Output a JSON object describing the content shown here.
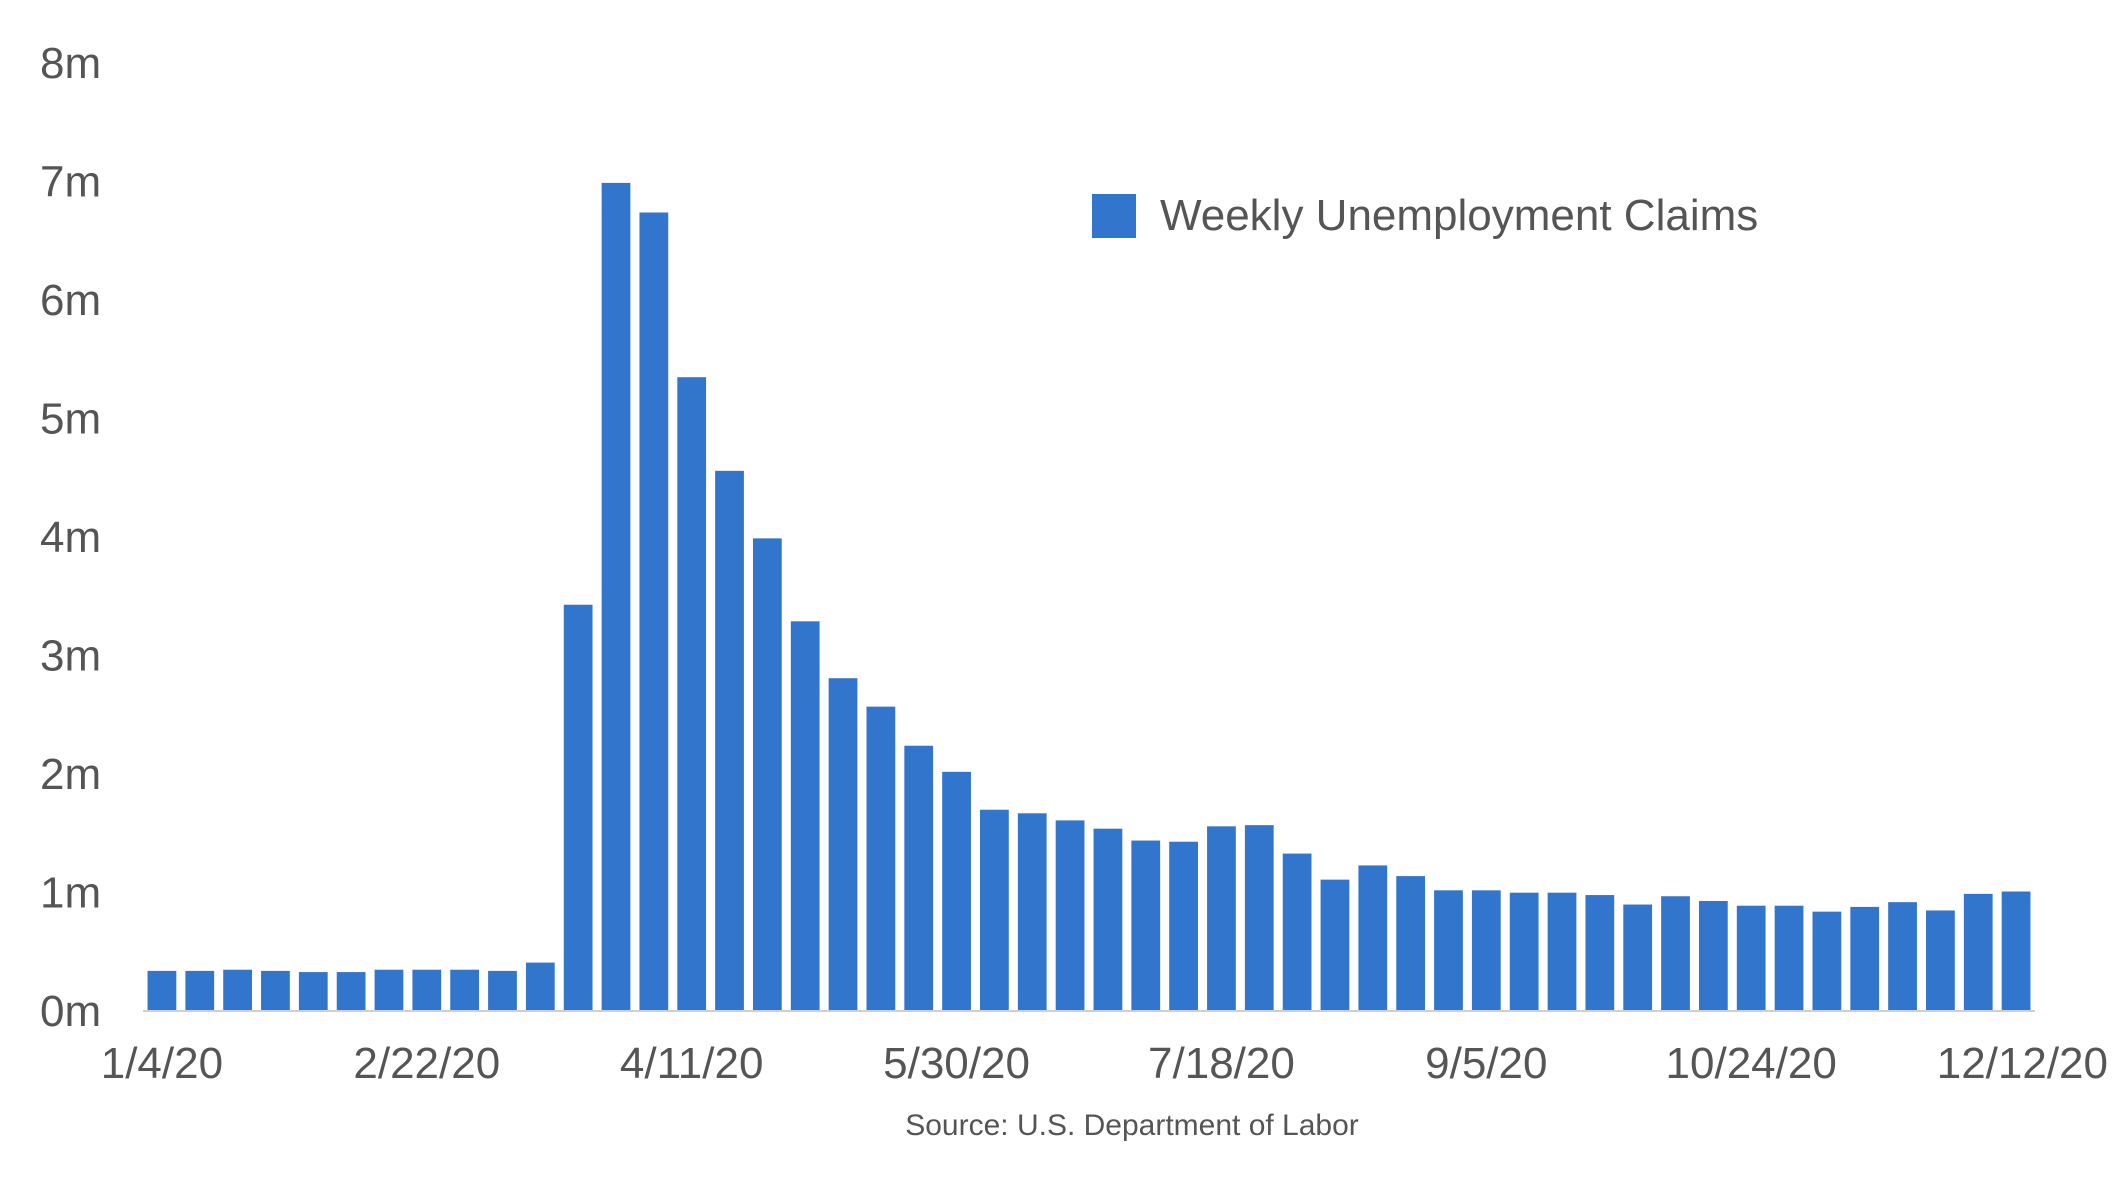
{
  "chart_data": {
    "type": "bar",
    "legend": {
      "label": "Weekly Unemployment Claims",
      "placement": "top-right"
    },
    "source": "Source: U.S. Department of Labor",
    "color": "#3176CC",
    "ylim": [
      0,
      8000000
    ],
    "yticks": [
      {
        "value": 0,
        "label": "0m"
      },
      {
        "value": 1000000,
        "label": "1m"
      },
      {
        "value": 2000000,
        "label": "2m"
      },
      {
        "value": 3000000,
        "label": "3m"
      },
      {
        "value": 4000000,
        "label": "4m"
      },
      {
        "value": 5000000,
        "label": "5m"
      },
      {
        "value": 6000000,
        "label": "6m"
      },
      {
        "value": 7000000,
        "label": "7m"
      },
      {
        "value": 8000000,
        "label": "8m"
      }
    ],
    "xticks": [
      {
        "index": 0,
        "label": "1/4/20"
      },
      {
        "index": 7,
        "label": "2/22/20"
      },
      {
        "index": 14,
        "label": "4/11/20"
      },
      {
        "index": 21,
        "label": "5/30/20"
      },
      {
        "index": 28,
        "label": "7/18/20"
      },
      {
        "index": 35,
        "label": "9/5/20"
      },
      {
        "index": 42,
        "label": "10/24/20"
      },
      {
        "index": 49,
        "label": "12/12/20"
      }
    ],
    "grid": false,
    "values": [
      330000,
      330000,
      340000,
      330000,
      320000,
      320000,
      340000,
      340000,
      340000,
      330000,
      400000,
      3420000,
      6980000,
      6730000,
      5340000,
      4550000,
      3980000,
      3280000,
      2800000,
      2560000,
      2230000,
      2010000,
      1690000,
      1660000,
      1600000,
      1530000,
      1430000,
      1420000,
      1550000,
      1560000,
      1320000,
      1100000,
      1220000,
      1130000,
      1010000,
      1010000,
      990000,
      990000,
      970000,
      890000,
      960000,
      920000,
      880000,
      880000,
      830000,
      870000,
      910000,
      840000,
      980000,
      1000000
    ]
  }
}
